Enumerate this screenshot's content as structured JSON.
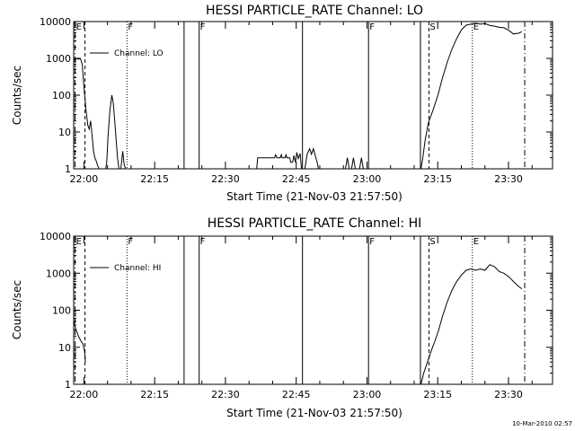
{
  "chart_data": [
    {
      "type": "line",
      "title": "HESSI PARTICLE_RATE Channel: LO",
      "xlabel": "Start Time (21-Nov-03 21:57:50)",
      "ylabel": "Counts/sec",
      "x_unit": "minutes after 21-Nov-03 21:57:50",
      "xlim": [
        0,
        101.5
      ],
      "ylim": [
        1,
        10000
      ],
      "y_scale": "log",
      "xticks": [
        {
          "label": "22:00",
          "x": 2.17
        },
        {
          "label": "22:15",
          "x": 17.17
        },
        {
          "label": "22:30",
          "x": 32.17
        },
        {
          "label": "22:45",
          "x": 47.17
        },
        {
          "label": "23:00",
          "x": 62.17
        },
        {
          "label": "23:15",
          "x": 77.17
        },
        {
          "label": "23:30",
          "x": 92.17
        }
      ],
      "yticks": [
        {
          "label": "1",
          "y": 1
        },
        {
          "label": "10",
          "y": 10
        },
        {
          "label": "100",
          "y": 100
        },
        {
          "label": "1000",
          "y": 1000
        },
        {
          "label": "10000",
          "y": 10000
        }
      ],
      "legend": {
        "label": "Channel: LO",
        "position": "top-left"
      },
      "flags": [
        {
          "label": "E",
          "x": 0.3,
          "style": "dashdot"
        },
        {
          "label": "",
          "x": 2.4,
          "style": "dashed"
        },
        {
          "label": "F",
          "x": 11.3,
          "style": "dotted"
        },
        {
          "label": "",
          "x": 23.4,
          "style": "solid"
        },
        {
          "label": "F",
          "x": 26.6,
          "style": "solid"
        },
        {
          "label": "",
          "x": 48.5,
          "style": "solid"
        },
        {
          "label": "F",
          "x": 62.5,
          "style": "solid"
        },
        {
          "label": "",
          "x": 73.5,
          "style": "solid"
        },
        {
          "label": "S",
          "x": 75.3,
          "style": "dashed"
        },
        {
          "label": "E",
          "x": 84.5,
          "style": "dotted"
        },
        {
          "label": "",
          "x": 95.6,
          "style": "dashdot"
        }
      ],
      "series": [
        {
          "segments": [
            [
              [
                0,
                900
              ],
              [
                0.6,
                1000
              ],
              [
                1.0,
                950
              ],
              [
                1.4,
                1000
              ],
              [
                1.8,
                700
              ],
              [
                2.2,
                150
              ],
              [
                2.6,
                40
              ],
              [
                3.0,
                15
              ],
              [
                3.3,
                12
              ],
              [
                3.6,
                20
              ],
              [
                3.9,
                8
              ],
              [
                4.2,
                3
              ],
              [
                4.5,
                2
              ],
              [
                4.8,
                1.6
              ],
              [
                5.1,
                1.2
              ],
              [
                5.4,
                1
              ]
            ],
            [
              [
                6.8,
                1
              ],
              [
                7.0,
                1.5
              ],
              [
                7.3,
                8
              ],
              [
                7.7,
                40
              ],
              [
                8.1,
                100
              ],
              [
                8.4,
                60
              ],
              [
                8.7,
                20
              ],
              [
                9.0,
                6
              ],
              [
                9.3,
                2
              ],
              [
                9.6,
                1
              ]
            ],
            [
              [
                10.0,
                1
              ],
              [
                10.4,
                3
              ],
              [
                10.7,
                1.3
              ],
              [
                11.0,
                1
              ]
            ],
            [
              [
                38.8,
                1
              ],
              [
                39.0,
                2
              ],
              [
                42.6,
                2
              ],
              [
                42.8,
                2.4
              ],
              [
                43.1,
                2
              ],
              [
                43.8,
                2
              ],
              [
                44.0,
                2.4
              ],
              [
                44.2,
                2
              ],
              [
                44.8,
                2
              ],
              [
                45.0,
                2.4
              ],
              [
                45.2,
                2
              ],
              [
                45.8,
                2
              ],
              [
                46.0,
                1.5
              ],
              [
                46.4,
                1.5
              ],
              [
                46.7,
                2.3
              ],
              [
                47.0,
                1.5
              ],
              [
                47.3,
                2.8
              ],
              [
                47.6,
                1.9
              ],
              [
                48.0,
                2.6
              ],
              [
                48.3,
                1
              ]
            ],
            [
              [
                49.0,
                1
              ],
              [
                49.5,
                2.5
              ],
              [
                50.0,
                3.5
              ],
              [
                50.4,
                2.5
              ],
              [
                50.8,
                3.5
              ],
              [
                51.2,
                2.3
              ],
              [
                51.6,
                1.5
              ],
              [
                51.9,
                1
              ]
            ],
            [
              [
                57.6,
                1
              ],
              [
                58.0,
                2
              ],
              [
                58.4,
                1
              ]
            ],
            [
              [
                58.9,
                1
              ],
              [
                59.3,
                2
              ],
              [
                59.7,
                1
              ]
            ],
            [
              [
                60.6,
                1
              ],
              [
                61.0,
                2
              ],
              [
                61.4,
                1
              ]
            ],
            [
              [
                73.6,
                1
              ],
              [
                74.0,
                2
              ],
              [
                74.5,
                6
              ],
              [
                75.2,
                18
              ],
              [
                76.2,
                40
              ],
              [
                77.2,
                100
              ],
              [
                78.2,
                300
              ],
              [
                79.2,
                800
              ],
              [
                80.2,
                1800
              ],
              [
                81.2,
                3500
              ],
              [
                82.2,
                6000
              ],
              [
                83.2,
                8000
              ],
              [
                84.2,
                8500
              ],
              [
                85.2,
                9000
              ],
              [
                86.2,
                8500
              ],
              [
                87.2,
                8800
              ],
              [
                88.2,
                7800
              ],
              [
                89.2,
                7500
              ],
              [
                90.2,
                7000
              ],
              [
                91.2,
                6800
              ],
              [
                92.2,
                5800
              ],
              [
                93.2,
                4600
              ],
              [
                94.2,
                4800
              ],
              [
                95.0,
                5300
              ]
            ]
          ]
        }
      ]
    },
    {
      "type": "line",
      "title": "HESSI PARTICLE_RATE Channel: HI",
      "xlabel": "Start Time (21-Nov-03 21:57:50)",
      "ylabel": "Counts/sec",
      "x_unit": "minutes after 21-Nov-03 21:57:50",
      "xlim": [
        0,
        101.5
      ],
      "ylim": [
        1,
        10000
      ],
      "y_scale": "log",
      "xticks": [
        {
          "label": "22:00",
          "x": 2.17
        },
        {
          "label": "22:15",
          "x": 17.17
        },
        {
          "label": "22:30",
          "x": 32.17
        },
        {
          "label": "22:45",
          "x": 47.17
        },
        {
          "label": "23:00",
          "x": 62.17
        },
        {
          "label": "23:15",
          "x": 77.17
        },
        {
          "label": "23:30",
          "x": 92.17
        }
      ],
      "yticks": [
        {
          "label": "1",
          "y": 1
        },
        {
          "label": "10",
          "y": 10
        },
        {
          "label": "100",
          "y": 100
        },
        {
          "label": "1000",
          "y": 1000
        },
        {
          "label": "10000",
          "y": 10000
        }
      ],
      "legend": {
        "label": "Channel: HI",
        "position": "top-left"
      },
      "flags": [
        {
          "label": "E",
          "x": 0.3,
          "style": "dashdot"
        },
        {
          "label": "",
          "x": 2.4,
          "style": "dashed"
        },
        {
          "label": "F",
          "x": 11.3,
          "style": "dotted"
        },
        {
          "label": "",
          "x": 23.4,
          "style": "solid"
        },
        {
          "label": "F",
          "x": 26.6,
          "style": "solid"
        },
        {
          "label": "",
          "x": 48.5,
          "style": "solid"
        },
        {
          "label": "F",
          "x": 62.5,
          "style": "solid"
        },
        {
          "label": "",
          "x": 73.5,
          "style": "solid"
        },
        {
          "label": "S",
          "x": 75.3,
          "style": "dashed"
        },
        {
          "label": "E",
          "x": 84.5,
          "style": "dotted"
        },
        {
          "label": "",
          "x": 95.6,
          "style": "dashdot"
        }
      ],
      "series": [
        {
          "segments": [
            [
              [
                0,
                50
              ],
              [
                0.5,
                30
              ],
              [
                1.0,
                20
              ],
              [
                1.5,
                15
              ],
              [
                2.0,
                12
              ],
              [
                2.3,
                8
              ],
              [
                2.5,
                4
              ]
            ],
            [
              [
                73.6,
                1
              ],
              [
                74.2,
                2
              ],
              [
                75.0,
                4
              ],
              [
                75.8,
                8
              ],
              [
                76.6,
                15
              ],
              [
                77.4,
                30
              ],
              [
                78.2,
                70
              ],
              [
                79.2,
                170
              ],
              [
                80.2,
                350
              ],
              [
                81.2,
                600
              ],
              [
                82.2,
                900
              ],
              [
                83.2,
                1200
              ],
              [
                84.2,
                1300
              ],
              [
                85.2,
                1200
              ],
              [
                86.2,
                1300
              ],
              [
                87.2,
                1200
              ],
              [
                88.2,
                1700
              ],
              [
                89.2,
                1500
              ],
              [
                90.2,
                1100
              ],
              [
                91.2,
                1000
              ],
              [
                92.2,
                800
              ],
              [
                93.2,
                600
              ],
              [
                94.2,
                450
              ],
              [
                95.0,
                380
              ]
            ]
          ]
        }
      ]
    }
  ],
  "footer": {
    "timestamp": "10-Mar-2010 02:57"
  }
}
